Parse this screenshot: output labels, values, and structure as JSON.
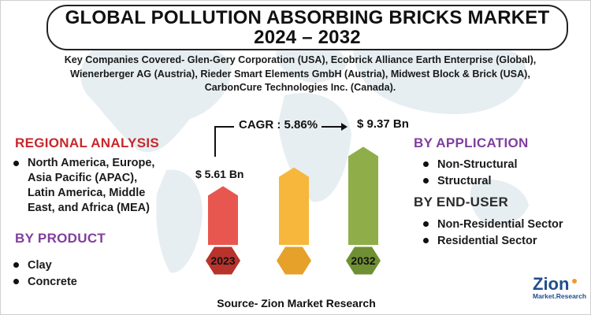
{
  "title": {
    "line1": "GLOBAL POLLUTION ABSORBING BRICKS MARKET",
    "line2": "2024 – 2032"
  },
  "companies": {
    "line1": "Key Companies Covered- Glen-Gery Corporation (USA), Ecobrick Alliance Earth Enterprise (Global),",
    "line2": "Wienerberger AG (Austria), Rieder Smart Elements GmbH (Austria), Midwest Block & Brick (USA),",
    "line3": "CarbonCure Technologies Inc. (Canada)."
  },
  "chart_data": {
    "type": "bar",
    "categories": [
      "2023",
      "",
      "2032"
    ],
    "values": [
      5.61,
      7.4,
      9.37
    ],
    "value_labels": [
      "$ 5.61 Bn",
      "",
      "$ 9.37 Bn"
    ],
    "cagr_label": "CAGR : 5.86%",
    "colors": [
      "#e8574f",
      "#f6b73c",
      "#8fae4a"
    ],
    "ylim": [
      0,
      10
    ]
  },
  "regional": {
    "heading": "REGIONAL ANALYSIS",
    "lines": [
      "North America, Europe,",
      "Asia Pacific (APAC),",
      "Latin America, Middle",
      "East, and Africa (MEA)"
    ]
  },
  "product": {
    "heading": "BY PRODUCT",
    "items": [
      "Clay",
      "Concrete"
    ]
  },
  "application": {
    "heading": "BY APPLICATION",
    "items": [
      "Non-Structural",
      "Structural"
    ]
  },
  "end_user": {
    "heading": "BY END-USER",
    "items": [
      "Non-Residential Sector",
      "Residential Sector"
    ]
  },
  "source": "Source- Zion Market Research",
  "logo": {
    "word": "Zion",
    "sub": "Market.Research"
  }
}
